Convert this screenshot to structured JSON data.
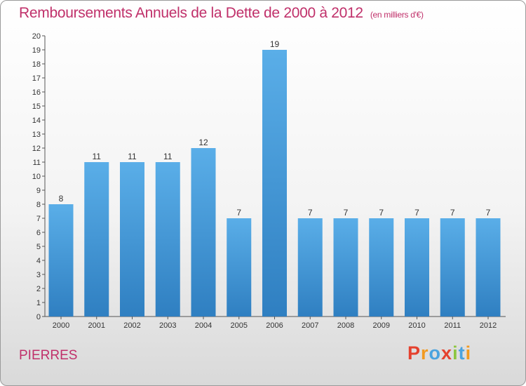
{
  "title": "Remboursements Annuels de la Dette de 2000 à 2012",
  "subtitle": "(en milliers d'€)",
  "place": "PIERRES",
  "logo": "Proxiti",
  "colors": {
    "title": "#c0306a",
    "bar_top": "#5aaee8",
    "bar_bottom": "#2f7fc1",
    "logo": [
      "#e5412e",
      "#f29a1f",
      "#4aa3df",
      "#e5412e",
      "#8cc63f",
      "#4aa3df",
      "#f29a1f"
    ]
  },
  "chart_data": {
    "type": "bar",
    "title": "Remboursements Annuels de la Dette de 2000 à 2012",
    "subtitle": "(en milliers d'€)",
    "categories": [
      "2000",
      "2001",
      "2002",
      "2003",
      "2004",
      "2005",
      "2006",
      "2007",
      "2008",
      "2009",
      "2010",
      "2011",
      "2012"
    ],
    "values": [
      8,
      11,
      11,
      11,
      12,
      7,
      19,
      7,
      7,
      7,
      7,
      7,
      7
    ],
    "data_labels": [
      "8",
      "11",
      "11",
      "11",
      "12",
      "7",
      "19",
      "7",
      "7",
      "7",
      "7",
      "7",
      "7"
    ],
    "y_ticks": [
      "0",
      "1",
      "2",
      "3",
      "4",
      "5",
      "6",
      "7",
      "8",
      "9",
      "10",
      "11",
      "12",
      "13",
      "14",
      "15",
      "16",
      "17",
      "18",
      "19",
      "20"
    ],
    "ylim": [
      0,
      20
    ],
    "xlabel": "",
    "ylabel": "",
    "grid": false
  }
}
